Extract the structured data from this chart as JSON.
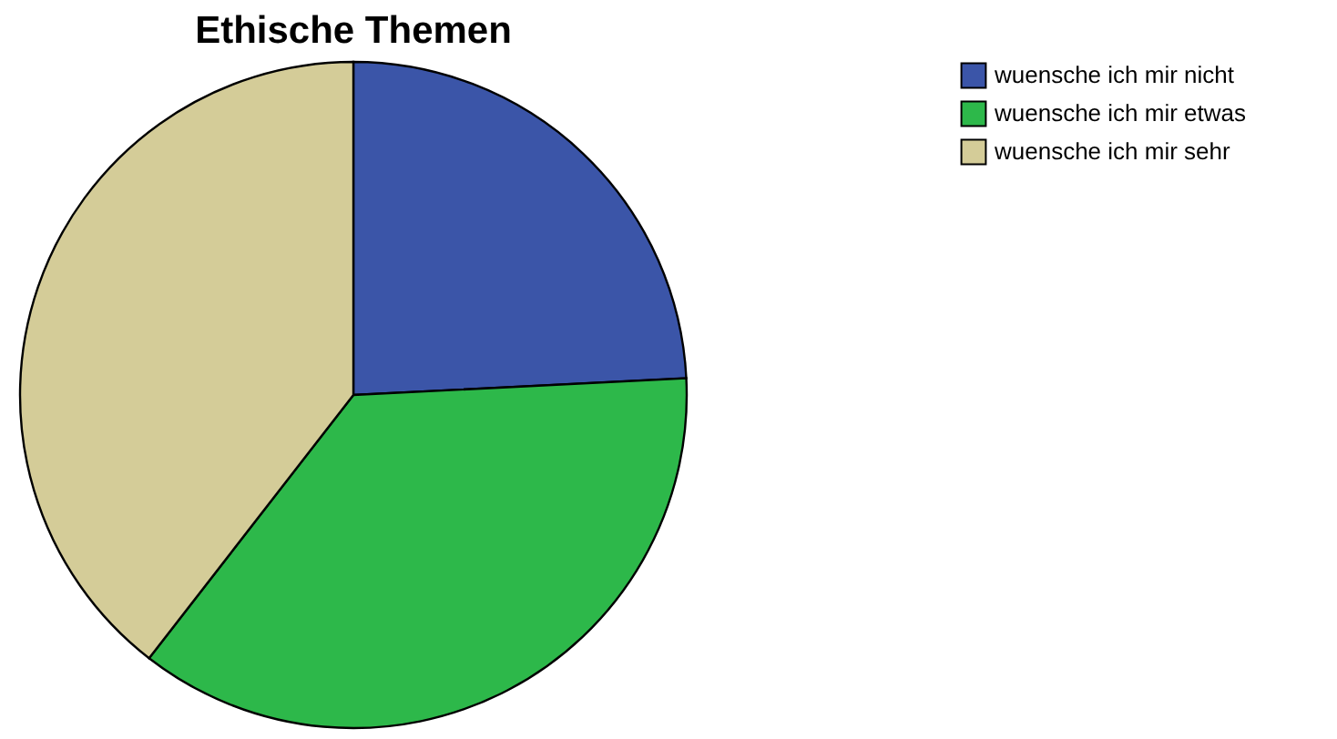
{
  "chart_data": {
    "type": "pie",
    "title": "Ethische Themen",
    "categories": [
      "wuensche ich mir nicht",
      "wuensche ich mir etwas",
      "wuensche ich mir sehr"
    ],
    "values": [
      24.2,
      36.3,
      39.5
    ],
    "colors": [
      "#3b55a8",
      "#2db84a",
      "#d4cc98"
    ],
    "legend": "top right"
  }
}
